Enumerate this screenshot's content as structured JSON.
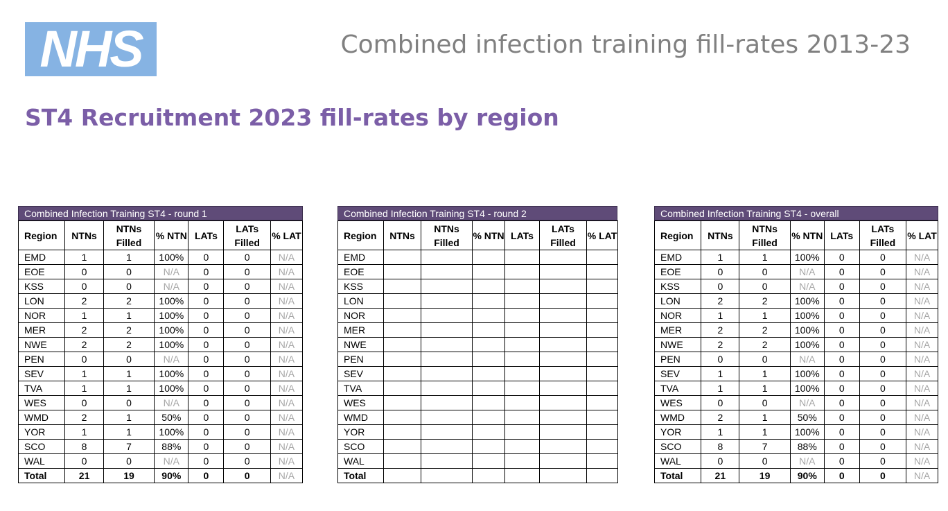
{
  "logo": {
    "text": "NHS"
  },
  "header": {
    "title": "Combined infection training fill-rates 2013-23",
    "subtitle": "ST4 Recruitment 2023 fill-rates by region"
  },
  "columns": [
    "Region",
    "NTNs",
    "NTNs Filled",
    "% NTN",
    "LATs",
    "LATs Filled",
    "% LAT"
  ],
  "tables": [
    {
      "caption": "Combined Infection Training ST4 - round 1",
      "rows": [
        [
          "EMD",
          "1",
          "1",
          "100%",
          "0",
          "0",
          "N/A"
        ],
        [
          "EOE",
          "0",
          "0",
          "N/A",
          "0",
          "0",
          "N/A"
        ],
        [
          "KSS",
          "0",
          "0",
          "N/A",
          "0",
          "0",
          "N/A"
        ],
        [
          "LON",
          "2",
          "2",
          "100%",
          "0",
          "0",
          "N/A"
        ],
        [
          "NOR",
          "1",
          "1",
          "100%",
          "0",
          "0",
          "N/A"
        ],
        [
          "MER",
          "2",
          "2",
          "100%",
          "0",
          "0",
          "N/A"
        ],
        [
          "NWE",
          "2",
          "2",
          "100%",
          "0",
          "0",
          "N/A"
        ],
        [
          "PEN",
          "0",
          "0",
          "N/A",
          "0",
          "0",
          "N/A"
        ],
        [
          "SEV",
          "1",
          "1",
          "100%",
          "0",
          "0",
          "N/A"
        ],
        [
          "TVA",
          "1",
          "1",
          "100%",
          "0",
          "0",
          "N/A"
        ],
        [
          "WES",
          "0",
          "0",
          "N/A",
          "0",
          "0",
          "N/A"
        ],
        [
          "WMD",
          "2",
          "1",
          "50%",
          "0",
          "0",
          "N/A"
        ],
        [
          "YOR",
          "1",
          "1",
          "100%",
          "0",
          "0",
          "N/A"
        ],
        [
          "SCO",
          "8",
          "7",
          "88%",
          "0",
          "0",
          "N/A"
        ],
        [
          "WAL",
          "0",
          "0",
          "N/A",
          "0",
          "0",
          "N/A"
        ]
      ],
      "total": [
        "Total",
        "21",
        "19",
        "90%",
        "0",
        "0",
        "N/A"
      ]
    },
    {
      "caption": "Combined Infection Training ST4 - round 2",
      "rows": [
        [
          "EMD",
          "",
          "",
          "",
          "",
          "",
          ""
        ],
        [
          "EOE",
          "",
          "",
          "",
          "",
          "",
          ""
        ],
        [
          "KSS",
          "",
          "",
          "",
          "",
          "",
          ""
        ],
        [
          "LON",
          "",
          "",
          "",
          "",
          "",
          ""
        ],
        [
          "NOR",
          "",
          "",
          "",
          "",
          "",
          ""
        ],
        [
          "MER",
          "",
          "",
          "",
          "",
          "",
          ""
        ],
        [
          "NWE",
          "",
          "",
          "",
          "",
          "",
          ""
        ],
        [
          "PEN",
          "",
          "",
          "",
          "",
          "",
          ""
        ],
        [
          "SEV",
          "",
          "",
          "",
          "",
          "",
          ""
        ],
        [
          "TVA",
          "",
          "",
          "",
          "",
          "",
          ""
        ],
        [
          "WES",
          "",
          "",
          "",
          "",
          "",
          ""
        ],
        [
          "WMD",
          "",
          "",
          "",
          "",
          "",
          ""
        ],
        [
          "YOR",
          "",
          "",
          "",
          "",
          "",
          ""
        ],
        [
          "SCO",
          "",
          "",
          "",
          "",
          "",
          ""
        ],
        [
          "WAL",
          "",
          "",
          "",
          "",
          "",
          ""
        ]
      ],
      "total": [
        "Total",
        "",
        "",
        "",
        "",
        "",
        ""
      ]
    },
    {
      "caption": "Combined Infection Training ST4 - overall",
      "rows": [
        [
          "EMD",
          "1",
          "1",
          "100%",
          "0",
          "0",
          "N/A"
        ],
        [
          "EOE",
          "0",
          "0",
          "N/A",
          "0",
          "0",
          "N/A"
        ],
        [
          "KSS",
          "0",
          "0",
          "N/A",
          "0",
          "0",
          "N/A"
        ],
        [
          "LON",
          "2",
          "2",
          "100%",
          "0",
          "0",
          "N/A"
        ],
        [
          "NOR",
          "1",
          "1",
          "100%",
          "0",
          "0",
          "N/A"
        ],
        [
          "MER",
          "2",
          "2",
          "100%",
          "0",
          "0",
          "N/A"
        ],
        [
          "NWE",
          "2",
          "2",
          "100%",
          "0",
          "0",
          "N/A"
        ],
        [
          "PEN",
          "0",
          "0",
          "N/A",
          "0",
          "0",
          "N/A"
        ],
        [
          "SEV",
          "1",
          "1",
          "100%",
          "0",
          "0",
          "N/A"
        ],
        [
          "TVA",
          "1",
          "1",
          "100%",
          "0",
          "0",
          "N/A"
        ],
        [
          "WES",
          "0",
          "0",
          "N/A",
          "0",
          "0",
          "N/A"
        ],
        [
          "WMD",
          "2",
          "1",
          "50%",
          "0",
          "0",
          "N/A"
        ],
        [
          "YOR",
          "1",
          "1",
          "100%",
          "0",
          "0",
          "N/A"
        ],
        [
          "SCO",
          "8",
          "7",
          "88%",
          "0",
          "0",
          "N/A"
        ],
        [
          "WAL",
          "0",
          "0",
          "N/A",
          "0",
          "0",
          "N/A"
        ]
      ],
      "total": [
        "Total",
        "21",
        "19",
        "90%",
        "0",
        "0",
        "N/A"
      ]
    }
  ],
  "colors": {
    "logo_bg": "#86b3e3",
    "subtitle": "#7b5ea7",
    "caption_bg": "#5f4b78",
    "na_text": "#a6a6a6"
  }
}
